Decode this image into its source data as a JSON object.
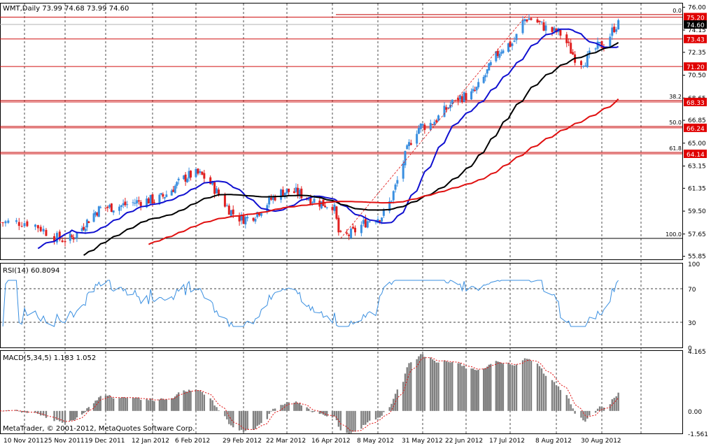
{
  "header": {
    "symbol_info": "WMT,Daily  73.99 74.68 73.99 74.60",
    "rsi_label": "RSI(14) 60.8094",
    "macd_label": "MACD(5,34,5) 1.183 1.052",
    "copyright": "MetaTrader, © 2001-2012, MetaQuotes Software Corp."
  },
  "price_axis": {
    "ticks": [
      "76.00",
      "74.15",
      "72.35",
      "70.50",
      "68.65",
      "66.85",
      "65.00",
      "63.15",
      "61.35",
      "59.50",
      "57.65",
      "55.85"
    ],
    "current_price": "74.60"
  },
  "horizontal_lines": [
    {
      "price": 75.2,
      "label": "75.20"
    },
    {
      "price": 73.43,
      "label": "73.43"
    },
    {
      "price": 71.2,
      "label": "71.20"
    },
    {
      "price": 68.33,
      "label": "68.33"
    },
    {
      "price": 66.24,
      "label": "66.24"
    },
    {
      "price": 64.14,
      "label": "64.14"
    }
  ],
  "fibonacci_levels": [
    {
      "price": 75.4,
      "label": "0.0"
    },
    {
      "price": 68.45,
      "label": "38.2"
    },
    {
      "price": 66.35,
      "label": "50.0"
    },
    {
      "price": 64.25,
      "label": "61.8"
    },
    {
      "price": 57.3,
      "label": "100.0"
    }
  ],
  "rsi_axis": {
    "ticks": [
      "100",
      "70",
      "30",
      "0"
    ]
  },
  "macd_axis": {
    "ticks": [
      "4.165",
      "0.00",
      "-1.561"
    ]
  },
  "x_axis": {
    "labels": [
      "10 Nov 2011",
      "25 Nov 2011",
      "19 Dec 2011",
      "12 Jan 2012",
      "6 Feb 2012",
      "29 Feb 2012",
      "22 Mar 2012",
      "16 Apr 2012",
      "8 May 2012",
      "31 May 2012",
      "22 Jun 2012",
      "17 Jul 2012",
      "8 Aug 2012",
      "30 Aug 2012"
    ]
  },
  "colors": {
    "bull": "#3a8fe0",
    "bear": "#e02020",
    "ma_fast": "#1010d0",
    "ma_mid": "#000000",
    "ma_slow": "#e01010",
    "hline": "#d01010",
    "rsi_line": "#3a8fe0",
    "macd_hist": "#808080",
    "macd_signal": "#e01010"
  },
  "chart_data": {
    "type": "line",
    "title": "WMT,Daily",
    "price_keypoints": [
      {
        "date": "2011-11-10",
        "close": 58.6
      },
      {
        "date": "2011-11-25",
        "close": 57.2
      },
      {
        "date": "2011-12-19",
        "close": 59.8
      },
      {
        "date": "2012-01-12",
        "close": 60.4
      },
      {
        "date": "2012-02-06",
        "close": 62.5
      },
      {
        "date": "2012-02-29",
        "close": 58.9
      },
      {
        "date": "2012-03-22",
        "close": 61.1
      },
      {
        "date": "2012-04-16",
        "close": 60.0
      },
      {
        "date": "2012-04-20",
        "close": 57.4
      },
      {
        "date": "2012-05-08",
        "close": 59.0
      },
      {
        "date": "2012-05-31",
        "close": 66.4
      },
      {
        "date": "2012-06-22",
        "close": 68.8
      },
      {
        "date": "2012-07-17",
        "close": 73.0
      },
      {
        "date": "2012-07-25",
        "close": 75.1
      },
      {
        "date": "2012-08-08",
        "close": 74.0
      },
      {
        "date": "2012-08-20",
        "close": 71.6
      },
      {
        "date": "2012-08-30",
        "close": 72.9
      },
      {
        "date": "2012-09-07",
        "close": 74.6
      }
    ],
    "rsi_range": [
      0,
      100
    ],
    "rsi_levels": [
      30,
      70
    ],
    "macd_range": [
      -1.561,
      4.165
    ]
  }
}
